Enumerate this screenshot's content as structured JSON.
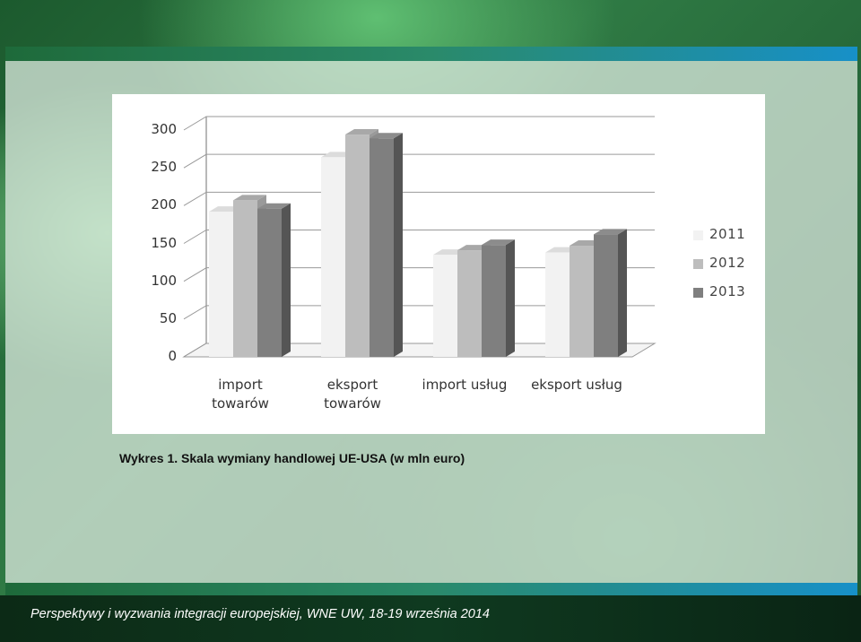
{
  "caption": "Wykres 1. Skala wymiany handlowej UE-USA (w mln euro)",
  "footer": "Perspektywy i wyzwania integracji europejskiej, WNE UW, 18-19 września 2014",
  "colors": {
    "s2011": "#f2f2f2",
    "s2012": "#bdbdbd",
    "s2013": "#7f7f7f"
  },
  "chart_data": {
    "type": "bar",
    "categories": [
      "import\ntowarów",
      "eksport\ntowarów",
      "import usług",
      "eksport usług"
    ],
    "series": [
      {
        "name": "2011",
        "values": [
          192,
          264,
          135,
          138
        ]
      },
      {
        "name": "2012",
        "values": [
          207,
          294,
          141,
          147
        ]
      },
      {
        "name": "2013",
        "values": [
          196,
          289,
          148,
          162
        ]
      }
    ],
    "yticks": [
      "0",
      "50",
      "100",
      "150",
      "200",
      "250",
      "300"
    ],
    "ylim": [
      0,
      300
    ],
    "grid": true,
    "legend": "right",
    "style": "3d"
  }
}
